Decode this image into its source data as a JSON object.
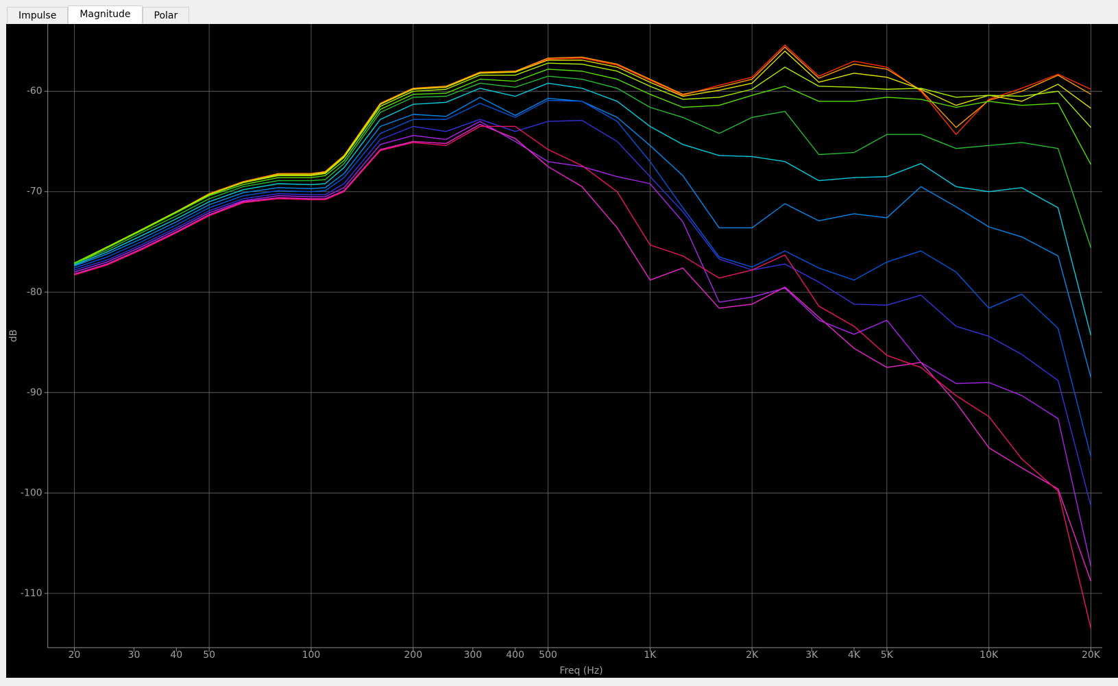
{
  "tabs": [
    "Impulse",
    "Magnitude",
    "Polar"
  ],
  "chart_data": {
    "type": "line",
    "x_label": "Freq (Hz)",
    "y_label": "dB",
    "xscale": "log",
    "xlim": [
      16.7,
      21600
    ],
    "ylim": [
      -115.4,
      -53.3
    ],
    "xticks": [
      20,
      30,
      40,
      50,
      100,
      200,
      300,
      400,
      500,
      {
        "value": 1000,
        "label": "1K"
      },
      {
        "value": 2000,
        "label": "2K"
      },
      {
        "value": 3000,
        "label": "3K"
      },
      {
        "value": 4000,
        "label": "4K"
      },
      {
        "value": 5000,
        "label": "5K"
      },
      {
        "value": 10000,
        "label": "10K"
      },
      {
        "value": 20000,
        "label": "20K"
      }
    ],
    "xgrid": [
      20,
      50,
      100,
      200,
      500,
      1000,
      2000,
      5000,
      10000,
      20000
    ],
    "yticks": [
      -60,
      -70,
      -80,
      -90,
      -100,
      -110
    ],
    "grid": true,
    "x": [
      20,
      25,
      31.5,
      40,
      50,
      63,
      80,
      100,
      110,
      125,
      160,
      200,
      250,
      315,
      400,
      500,
      630,
      800,
      1000,
      1250,
      1600,
      2000,
      2500,
      3150,
      4000,
      5000,
      6300,
      8000,
      10000,
      12500,
      16000,
      20000
    ],
    "series": [
      {
        "color": "#ff2a00",
        "values": [
          -77.2,
          -75.6,
          -73.8,
          -72.0,
          -70.2,
          -69.0,
          -68.2,
          -68.2,
          -68.0,
          -66.4,
          -61.2,
          -59.7,
          -59.5,
          -58.1,
          -58.1,
          -56.8,
          -56.7,
          -57.4,
          -58.9,
          -60.4,
          -59.4,
          -58.6,
          -55.4,
          -58.5,
          -57.0,
          -57.6,
          -60.0,
          -64.3,
          -60.8,
          -59.7,
          -58.3,
          -59.8
        ]
      },
      {
        "color": "#ff9900",
        "values": [
          -77.2,
          -75.6,
          -73.8,
          -72.0,
          -70.2,
          -69.0,
          -68.2,
          -68.2,
          -68.0,
          -66.4,
          -61.2,
          -59.7,
          -59.5,
          -58.1,
          -58.0,
          -56.7,
          -56.6,
          -57.3,
          -58.8,
          -60.3,
          -59.6,
          -58.8,
          -55.6,
          -58.7,
          -57.3,
          -57.8,
          -59.9,
          -63.6,
          -60.9,
          -60.0,
          -58.4,
          -60.3
        ]
      },
      {
        "color": "#e0e000",
        "values": [
          -77.2,
          -75.6,
          -73.8,
          -72.0,
          -70.3,
          -69.1,
          -68.3,
          -68.3,
          -68.1,
          -66.5,
          -61.3,
          -59.8,
          -59.6,
          -58.2,
          -58.1,
          -56.9,
          -56.9,
          -57.6,
          -59.1,
          -60.5,
          -59.9,
          -59.2,
          -56.0,
          -59.1,
          -58.2,
          -58.6,
          -59.8,
          -61.4,
          -60.4,
          -61.0,
          -59.3,
          -61.7
        ]
      },
      {
        "color": "#aaee00",
        "values": [
          -77.1,
          -75.5,
          -73.8,
          -72.0,
          -70.3,
          -69.1,
          -68.4,
          -68.4,
          -68.2,
          -66.6,
          -61.5,
          -60.0,
          -59.8,
          -58.4,
          -58.4,
          -57.2,
          -57.3,
          -58.0,
          -59.5,
          -60.8,
          -60.6,
          -59.8,
          -57.6,
          -59.5,
          -59.6,
          -59.8,
          -59.7,
          -60.6,
          -60.4,
          -60.5,
          -60.0,
          -63.6
        ]
      },
      {
        "color": "#55dd00",
        "values": [
          -77.1,
          -75.6,
          -73.9,
          -72.1,
          -70.4,
          -69.3,
          -68.6,
          -68.6,
          -68.4,
          -66.9,
          -61.8,
          -60.3,
          -60.2,
          -58.8,
          -59.0,
          -57.8,
          -58.0,
          -58.8,
          -60.3,
          -61.6,
          -61.4,
          -60.4,
          -59.5,
          -61.0,
          -61.0,
          -60.6,
          -60.8,
          -61.6,
          -61.0,
          -61.4,
          -61.2,
          -67.3
        ]
      },
      {
        "color": "#22bb33",
        "values": [
          -77.2,
          -75.8,
          -74.1,
          -72.4,
          -70.7,
          -69.5,
          -68.9,
          -68.9,
          -68.8,
          -67.2,
          -62.1,
          -60.6,
          -60.5,
          -59.2,
          -59.6,
          -58.5,
          -58.8,
          -59.7,
          -61.6,
          -62.6,
          -64.2,
          -62.6,
          -62.0,
          -66.3,
          -66.1,
          -64.3,
          -64.3,
          -65.7,
          -65.4,
          -65.1,
          -65.7,
          -75.6
        ]
      },
      {
        "color": "#00ccdd",
        "values": [
          -77.3,
          -76.0,
          -74.4,
          -72.7,
          -71.0,
          -69.8,
          -69.2,
          -69.3,
          -69.2,
          -67.6,
          -62.8,
          -61.3,
          -61.1,
          -59.7,
          -60.5,
          -59.2,
          -59.7,
          -61.0,
          -63.5,
          -65.3,
          -66.4,
          -66.5,
          -67.0,
          -68.9,
          -68.6,
          -68.5,
          -67.2,
          -69.5,
          -70.0,
          -69.6,
          -71.6,
          -84.3
        ]
      },
      {
        "color": "#0088ee",
        "values": [
          -77.4,
          -76.2,
          -74.7,
          -73.0,
          -71.3,
          -70.1,
          -69.6,
          -69.7,
          -69.6,
          -68.2,
          -63.5,
          -62.3,
          -62.5,
          -60.6,
          -62.4,
          -60.7,
          -61.0,
          -62.6,
          -65.4,
          -68.4,
          -73.6,
          -73.6,
          -71.2,
          -72.9,
          -72.2,
          -72.6,
          -69.5,
          -71.5,
          -73.5,
          -74.5,
          -76.4,
          -88.5
        ]
      },
      {
        "color": "#0055dd",
        "values": [
          -77.6,
          -76.5,
          -75.0,
          -73.3,
          -71.6,
          -70.4,
          -69.9,
          -70.0,
          -69.9,
          -68.6,
          -64.2,
          -62.8,
          -62.8,
          -61.2,
          -62.6,
          -60.9,
          -61.0,
          -63.0,
          -67.0,
          -71.6,
          -76.5,
          -77.5,
          -75.9,
          -77.6,
          -78.8,
          -77.0,
          -75.9,
          -78.0,
          -81.6,
          -80.2,
          -83.6,
          -96.4
        ]
      },
      {
        "color": "#3333dd",
        "values": [
          -77.8,
          -76.8,
          -75.3,
          -73.6,
          -71.9,
          -70.7,
          -70.2,
          -70.3,
          -70.3,
          -69.2,
          -64.8,
          -63.5,
          -64.0,
          -62.8,
          -64.0,
          -63.0,
          -62.9,
          -65.0,
          -68.5,
          -72.0,
          -76.7,
          -77.8,
          -77.2,
          -79.0,
          -81.2,
          -81.3,
          -80.3,
          -83.4,
          -84.4,
          -86.2,
          -88.8,
          -101.3
        ]
      },
      {
        "color": "#aa22ee",
        "values": [
          -78.0,
          -77.0,
          -75.5,
          -73.8,
          -72.1,
          -70.9,
          -70.4,
          -70.5,
          -70.5,
          -69.6,
          -65.3,
          -64.4,
          -64.8,
          -63.0,
          -65.0,
          -67.0,
          -67.5,
          -68.5,
          -69.2,
          -73.0,
          -81.0,
          -80.5,
          -79.6,
          -82.8,
          -84.2,
          -82.8,
          -87.0,
          -89.1,
          -89.0,
          -90.3,
          -92.6,
          -107.3
        ]
      },
      {
        "color": "#ee22cc",
        "values": [
          -78.2,
          -77.2,
          -75.7,
          -74.0,
          -72.3,
          -71.0,
          -70.6,
          -70.7,
          -70.7,
          -69.9,
          -65.8,
          -65.0,
          -65.2,
          -63.3,
          -64.7,
          -67.5,
          -69.5,
          -73.6,
          -78.8,
          -77.6,
          -81.6,
          -81.2,
          -79.5,
          -82.5,
          -85.6,
          -87.5,
          -87.0,
          -91.0,
          -95.5,
          -97.5,
          -99.6,
          -108.8
        ]
      },
      {
        "color": "#ee1166",
        "values": [
          -78.3,
          -77.3,
          -75.8,
          -74.1,
          -72.4,
          -71.1,
          -70.7,
          -70.8,
          -70.8,
          -70.0,
          -65.9,
          -65.1,
          -65.4,
          -63.5,
          -63.5,
          -65.8,
          -67.4,
          -70.0,
          -75.3,
          -76.4,
          -78.6,
          -77.8,
          -76.3,
          -81.4,
          -83.4,
          -86.3,
          -87.5,
          -90.3,
          -92.4,
          -96.6,
          -99.8,
          -113.5
        ]
      }
    ]
  }
}
